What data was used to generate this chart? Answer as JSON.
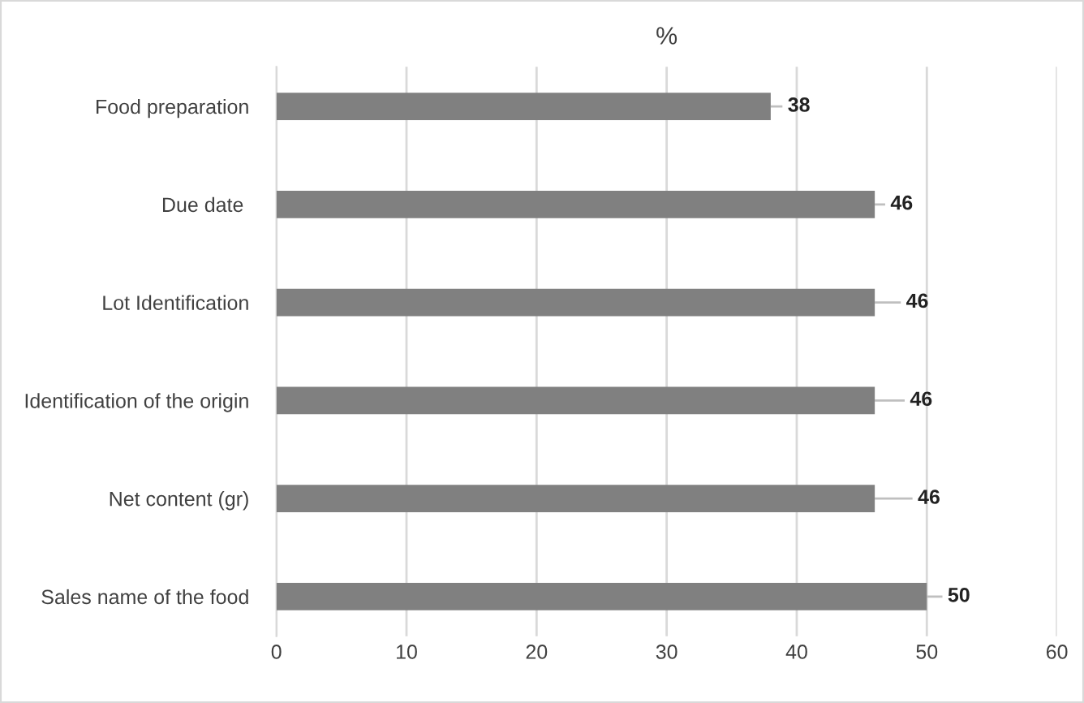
{
  "chart_data": {
    "type": "bar",
    "orientation": "horizontal",
    "title": "%",
    "categories": [
      "Food preparation",
      "Due date ",
      "Lot Identification",
      "Identification of the origin",
      "Net content (gr)",
      "Sales name of the food"
    ],
    "values": [
      38,
      46,
      46,
      46,
      46,
      50
    ],
    "errors": [
      [
        38,
        38.9
      ],
      [
        46,
        46.8
      ],
      [
        46,
        48
      ],
      [
        46,
        48.3
      ],
      [
        46,
        48.9
      ],
      [
        50,
        51.2
      ]
    ],
    "color": "#808080",
    "data_labels": true,
    "xlim": [
      0,
      60
    ],
    "xticks": [
      0,
      10,
      20,
      30,
      40,
      50,
      60
    ],
    "grid": "x",
    "legend": false
  }
}
